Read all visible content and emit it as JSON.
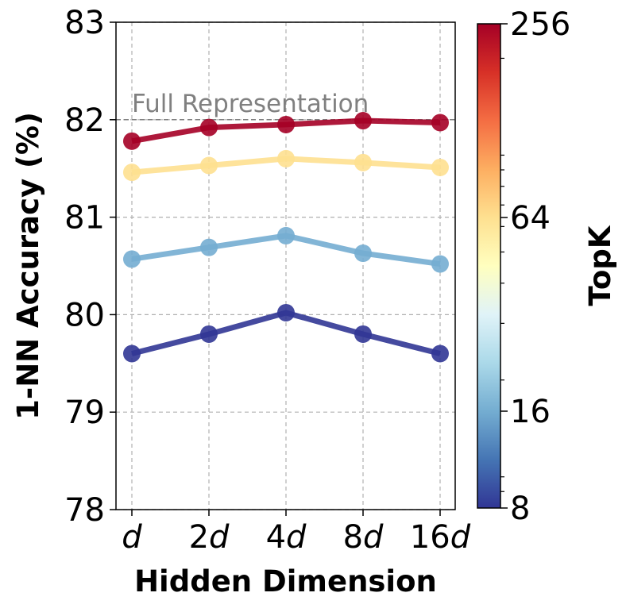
{
  "chart_data": {
    "type": "line",
    "xlabel": "Hidden Dimension",
    "ylabel": "1-NN Accuracy (%)",
    "categories": [
      "d",
      "2d",
      "4d",
      "8d",
      "16d"
    ],
    "category_labels": [
      {
        "coef": "",
        "var": "d"
      },
      {
        "coef": "2",
        "var": "d"
      },
      {
        "coef": "4",
        "var": "d"
      },
      {
        "coef": "8",
        "var": "d"
      },
      {
        "coef": "16",
        "var": "d"
      }
    ],
    "ylim": [
      78,
      83
    ],
    "yticks": [
      78,
      79,
      80,
      81,
      82,
      83
    ],
    "grid": true,
    "series": [
      {
        "color": "#313695",
        "values": [
          79.6,
          79.8,
          80.02,
          79.8,
          79.6
        ]
      },
      {
        "color": "#74add1",
        "values": [
          80.57,
          80.69,
          80.81,
          80.63,
          80.52
        ]
      },
      {
        "color": "#fee090",
        "values": [
          81.46,
          81.53,
          81.6,
          81.56,
          81.51
        ]
      },
      {
        "color": "#a50026",
        "values": [
          81.78,
          81.92,
          81.95,
          81.99,
          81.97
        ]
      }
    ],
    "reference_line": {
      "value": 82.0,
      "label": "Full Representation",
      "color": "#808080"
    },
    "colorbar": {
      "label": "TopK",
      "scale": "log",
      "range": [
        8,
        256
      ],
      "ticks": [
        8,
        16,
        64,
        256
      ],
      "colormap": [
        "#313695",
        "#4575b4",
        "#74add1",
        "#abd9e9",
        "#e0f3f8",
        "#ffffbf",
        "#fee090",
        "#fdae61",
        "#f46d43",
        "#d73027",
        "#a50026"
      ]
    }
  }
}
